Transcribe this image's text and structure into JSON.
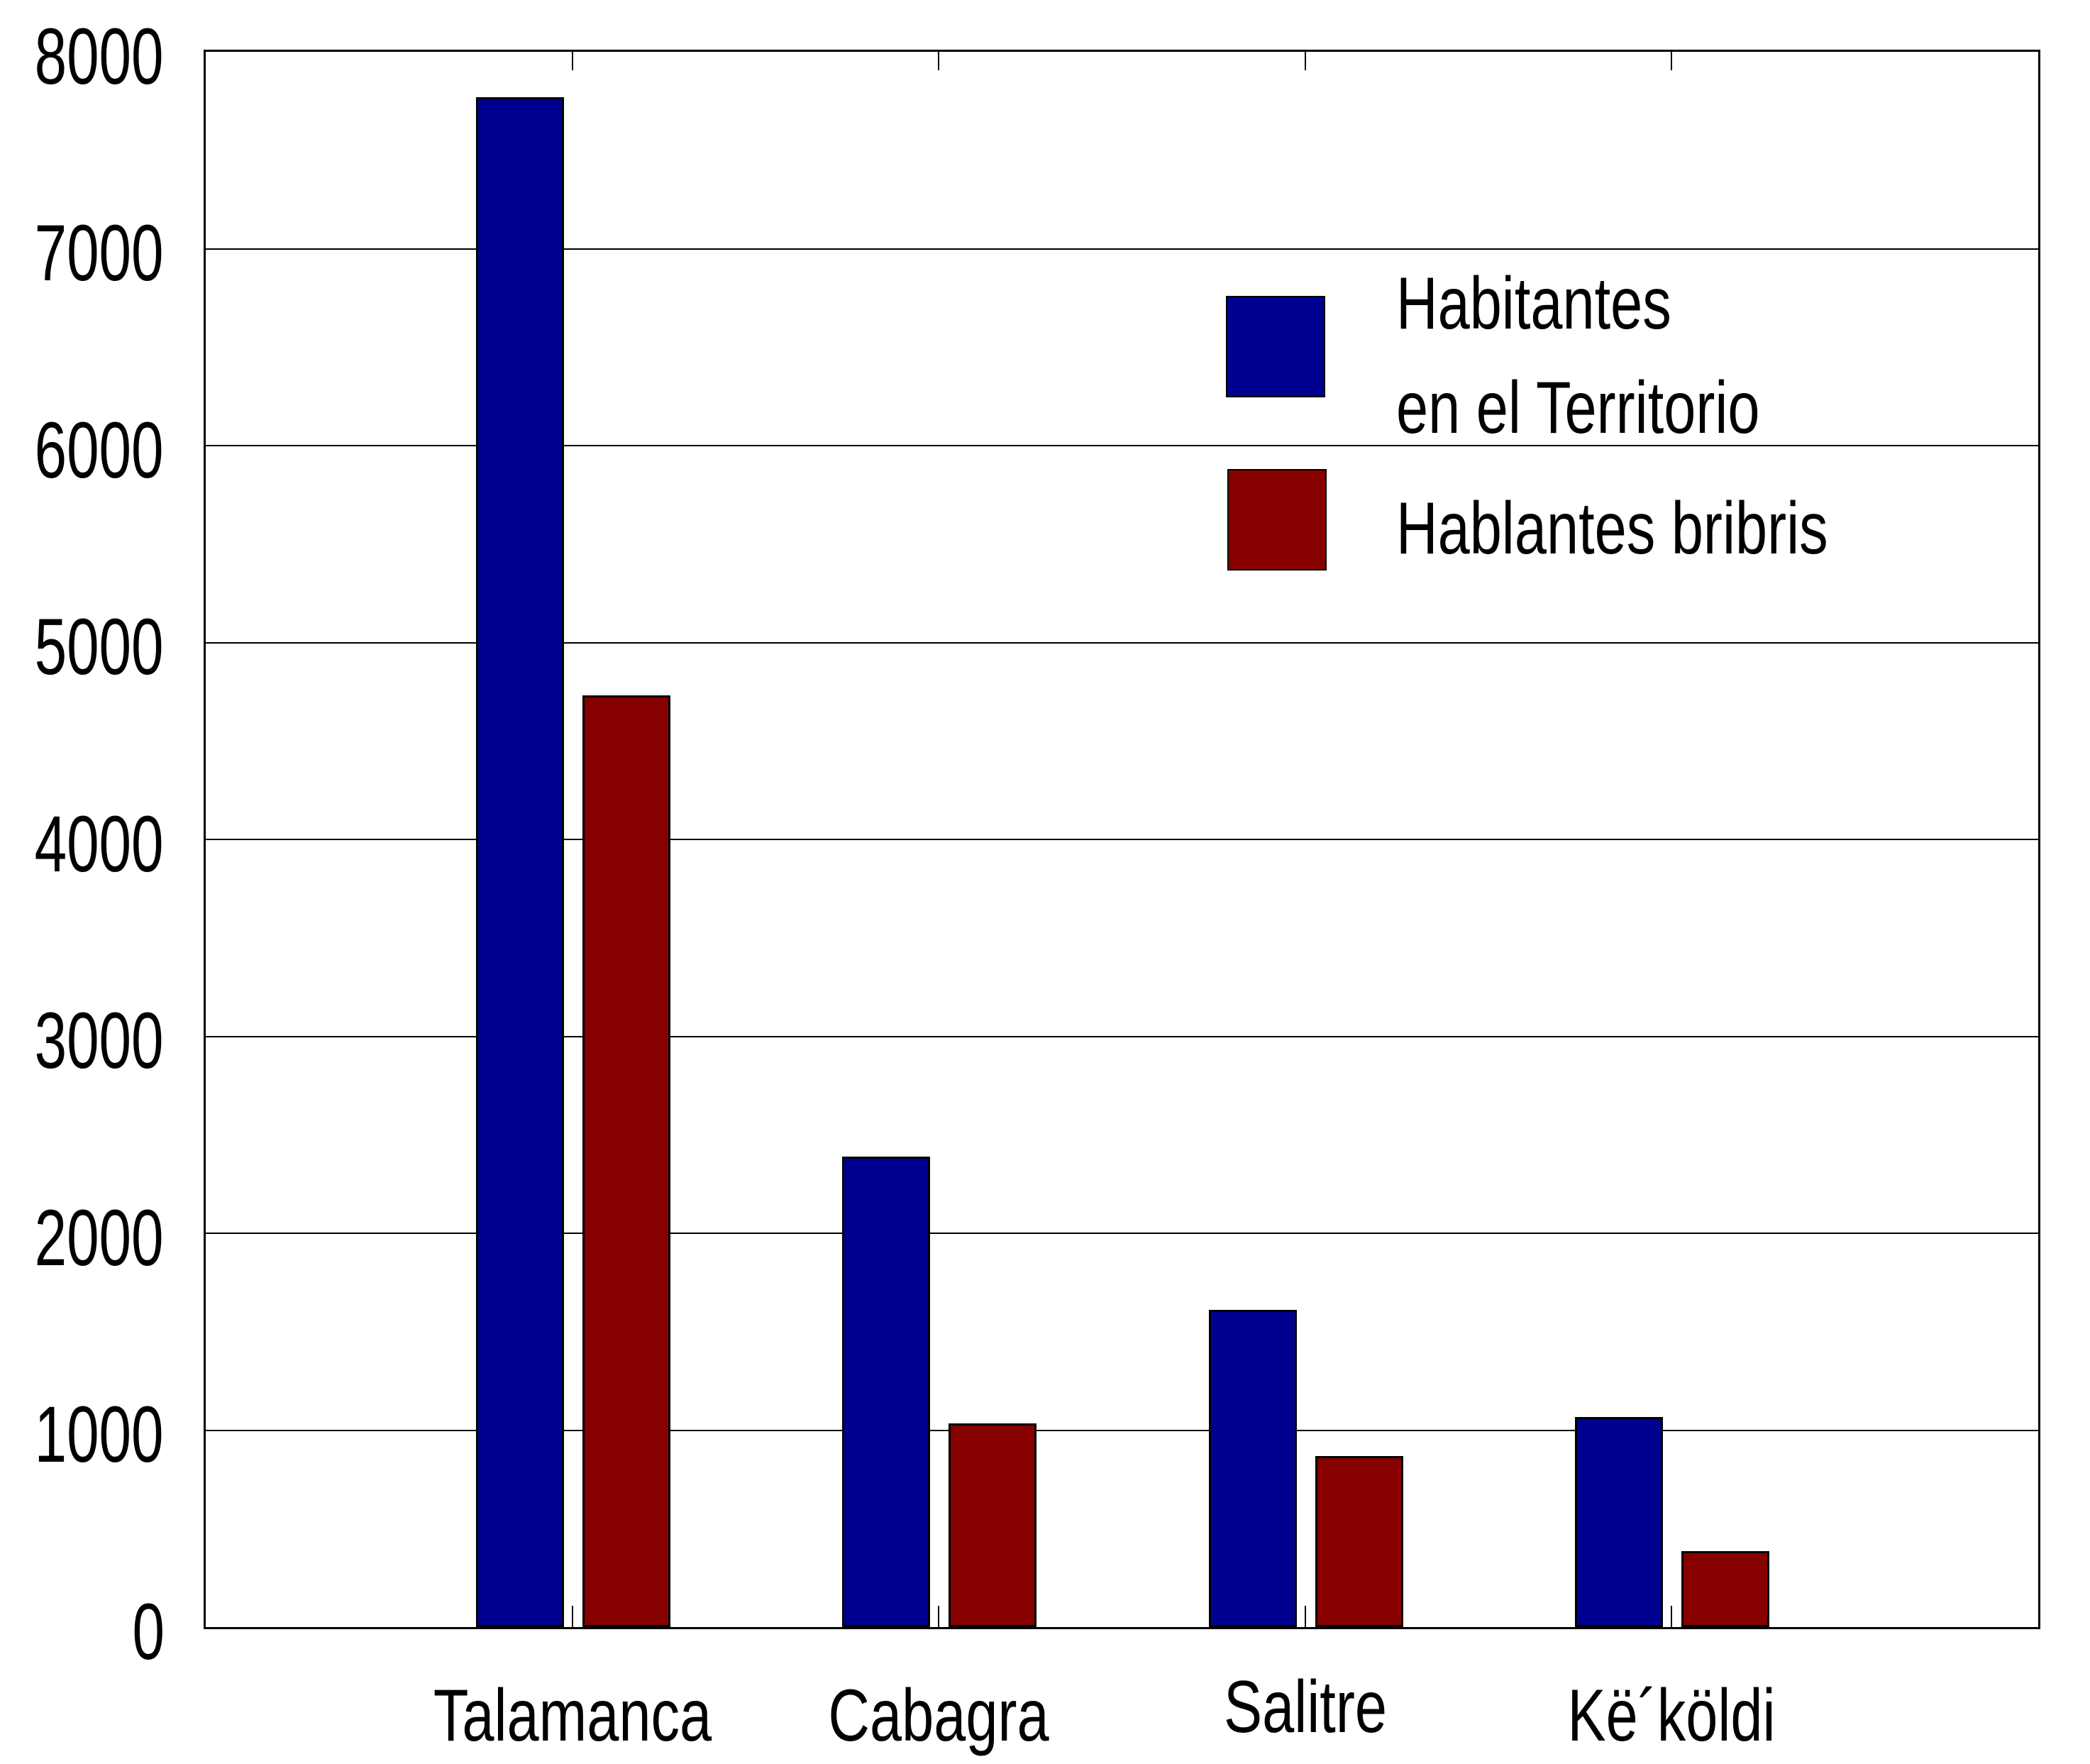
{
  "chart_data": {
    "type": "bar",
    "title": "",
    "categories": [
      "Talamanca",
      "Cabagra",
      "Salitre",
      "Kë´köldi"
    ],
    "series": [
      {
        "name": "Habitantes en el Territorio",
        "color": "#000090",
        "values": [
          7770,
          2390,
          1610,
          1065
        ]
      },
      {
        "name": "Hablantes bribris",
        "color": "#870000",
        "values": [
          4730,
          1035,
          870,
          385
        ]
      }
    ],
    "xlabel": "",
    "ylabel": "",
    "ylim": [
      0,
      8000
    ],
    "ytick_interval": 1000,
    "ytick_labels": [
      "0",
      "1000",
      "2000",
      "3000",
      "4000",
      "5000",
      "6000",
      "7000",
      "8000"
    ],
    "grid": "horizontal",
    "legend_position": "inside-top-right",
    "legend": [
      {
        "lines": [
          "Habitantes",
          "en el Territorio"
        ]
      },
      {
        "lines": [
          "Hablantes bribris"
        ]
      }
    ],
    "axis_color": "#000000",
    "text_color": "#000000",
    "background_color": "#ffffff"
  }
}
